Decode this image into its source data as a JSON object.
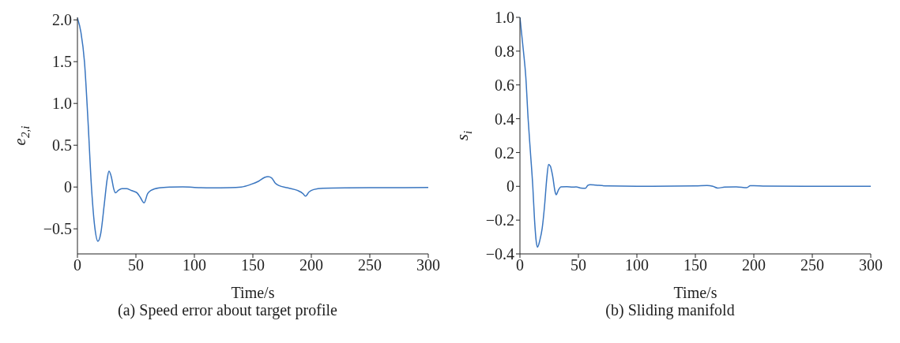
{
  "chart_data": [
    {
      "type": "line",
      "title": "(a) Speed error about target profile",
      "xlabel": "Time/s",
      "ylabel": "e$_{2,i}$",
      "marker": "none",
      "xlim": [
        0,
        300
      ],
      "xticks": [
        0,
        50,
        100,
        150,
        200,
        250,
        300
      ],
      "ylim": [
        -0.8,
        2.03
      ],
      "yticks": [
        {
          "value": -0.5,
          "label": "−0.5"
        },
        0,
        0.5,
        {
          "value": 1,
          "label": "1.0"
        },
        1.5,
        {
          "value": 2,
          "label": "2.0"
        }
      ],
      "x": [
        0,
        3,
        6,
        9,
        12,
        15,
        17.5,
        20,
        23,
        25.5,
        27,
        29,
        31,
        32.5,
        35,
        38,
        42,
        46,
        48,
        51,
        54,
        57,
        60,
        63,
        70,
        80,
        90,
        100,
        115,
        130,
        140,
        148,
        155,
        160,
        163,
        166,
        169,
        172,
        180,
        188,
        193,
        195,
        198,
        202,
        210,
        230,
        260,
        300
      ],
      "series": [
        {
          "color": "#3a76c0",
          "values": [
            2.02,
            1.85,
            1.5,
            0.8,
            0.0,
            -0.5,
            -0.65,
            -0.55,
            -0.2,
            0.1,
            0.19,
            0.12,
            -0.02,
            -0.07,
            -0.04,
            -0.02,
            -0.02,
            -0.04,
            -0.05,
            -0.07,
            -0.13,
            -0.19,
            -0.08,
            -0.04,
            -0.01,
            0.0,
            0.003,
            -0.005,
            -0.01,
            -0.008,
            0.0,
            0.03,
            0.07,
            0.115,
            0.125,
            0.11,
            0.05,
            0.02,
            -0.01,
            -0.04,
            -0.08,
            -0.11,
            -0.06,
            -0.03,
            -0.015,
            -0.01,
            -0.008,
            -0.005
          ]
        }
      ]
    },
    {
      "type": "line",
      "title": "(b) Sliding manifold",
      "xlabel": "Time/s",
      "ylabel": "s$_{i}$",
      "marker": "none",
      "xlim": [
        0,
        300
      ],
      "xticks": [
        0,
        50,
        100,
        150,
        200,
        250,
        300
      ],
      "ylim": [
        -0.4,
        1.0
      ],
      "yticks": [
        {
          "value": -0.4,
          "label": "−0.4"
        },
        {
          "value": -0.2,
          "label": "−0.2"
        },
        0,
        0.2,
        0.4,
        0.6,
        0.8,
        {
          "value": 1,
          "label": "1.0"
        }
      ],
      "x": [
        0,
        3,
        5,
        7,
        9,
        11,
        12.5,
        14,
        15,
        17,
        19,
        21,
        23,
        24.5,
        26,
        28,
        30,
        31,
        33,
        35,
        40,
        45,
        48,
        52,
        56,
        58,
        60,
        65,
        75,
        100,
        150,
        160,
        165,
        169,
        175,
        185,
        194,
        197,
        200,
        210,
        300
      ],
      "series": [
        {
          "color": "#3a76c0",
          "values": [
            1.0,
            0.8,
            0.65,
            0.4,
            0.2,
            0.0,
            -0.2,
            -0.33,
            -0.36,
            -0.32,
            -0.25,
            -0.12,
            0.05,
            0.13,
            0.12,
            0.06,
            -0.03,
            -0.05,
            -0.02,
            -0.003,
            -0.002,
            -0.005,
            -0.003,
            -0.01,
            -0.012,
            0.005,
            0.01,
            0.007,
            0.002,
            0,
            0.002,
            0.005,
            0.0,
            -0.01,
            -0.005,
            -0.003,
            -0.008,
            0.004,
            0.004,
            0.001,
            0
          ]
        }
      ]
    }
  ]
}
